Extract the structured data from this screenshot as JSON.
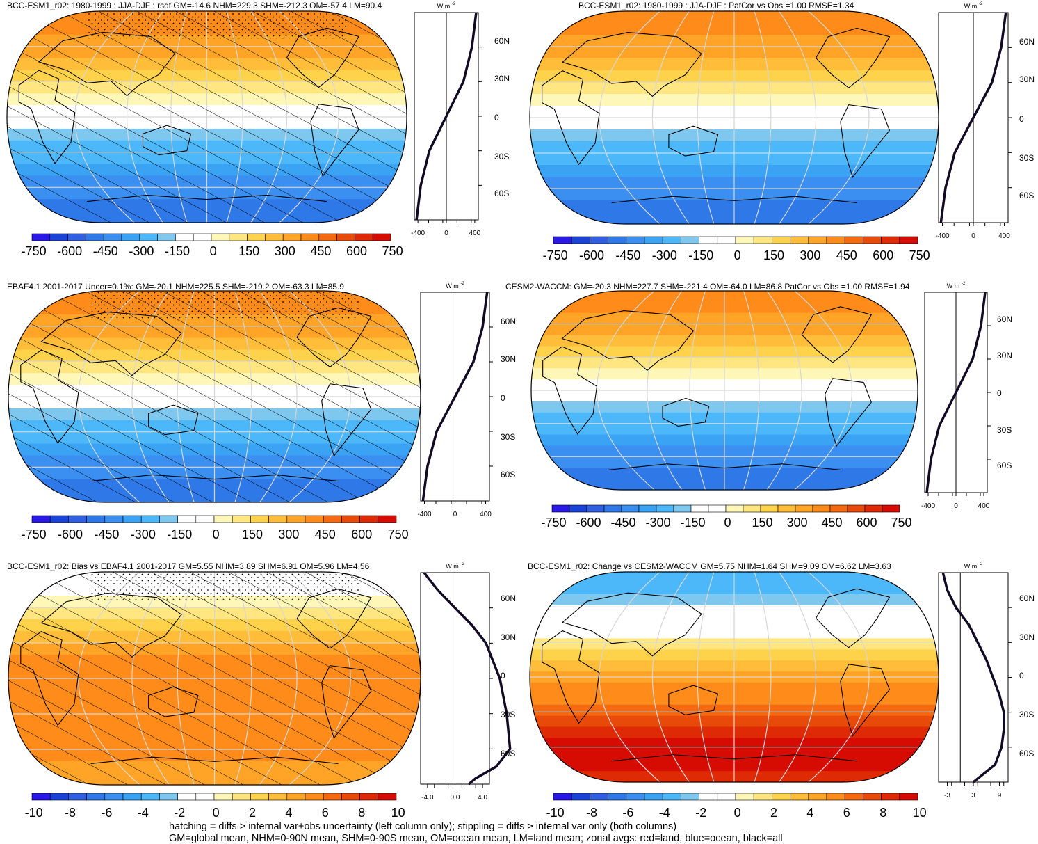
{
  "figure": {
    "footer_lines": [
      "hatching = diffs > internal var+obs uncertainty (left column only); stippling = diffs > internal var only (both columns)",
      "GM=global mean, NHM=0-90N mean, SHM=0-90S mean, OM=ocean mean, LM=land mean; zonal avgs: red=land, blue=ocean, black=all"
    ],
    "units_label": "W m",
    "units_exponent": "-2",
    "palette": [
      "#2a18e6",
      "#1a44d8",
      "#3060e0",
      "#2f78e8",
      "#3a8ff0",
      "#3aa3f4",
      "#4cb8fa",
      "#7ec8f0",
      "#ffffff",
      "#ffffff",
      "#fff7b8",
      "#ffe680",
      "#ffd24c",
      "#ffbd3a",
      "#ffa426",
      "#ff8c1a",
      "#f56a10",
      "#e84a0a",
      "#df2a06",
      "#d60c02"
    ]
  },
  "panels": [
    {
      "id": "top-left",
      "title": "BCC-ESM1_r02: 1980-1999 : JJA-DJF : rsdt GM=-14.6 NHM=229.3 SHM=-212.3 OM=-57.4 LM=90.4",
      "lat_labels": [
        "60N",
        "30N",
        "0",
        "30S",
        "60S"
      ],
      "zonal_xticks": [
        "-400",
        "0",
        "400"
      ],
      "colorbar_labels": [
        "-750",
        "-600",
        "-450",
        "-300",
        "-150",
        "0",
        "150",
        "300",
        "450",
        "600",
        "750"
      ],
      "hatching": true,
      "stippling": true,
      "zonal_mean": {
        "lat": [
          90,
          60,
          30,
          0,
          -30,
          -60,
          -90
        ],
        "value": [
          420,
          360,
          240,
          0,
          -240,
          -360,
          -420
        ],
        "xlim": [
          -450,
          450
        ]
      }
    },
    {
      "id": "top-right",
      "title": "BCC-ESM1_r02: 1980-1999 : JJA-DJF : PatCor vs Obs =1.00 RMSE=1.34",
      "lat_labels": [
        "60N",
        "30N",
        "0",
        "30S",
        "60S"
      ],
      "zonal_xticks": [
        "-400",
        "0",
        "400"
      ],
      "colorbar_labels": [
        "-750",
        "-600",
        "-450",
        "-300",
        "-150",
        "0",
        "150",
        "300",
        "450",
        "600",
        "750"
      ],
      "hatching": false,
      "stippling": false,
      "zonal_mean": {
        "lat": [
          90,
          60,
          30,
          0,
          -30,
          -60,
          -90
        ],
        "value": [
          420,
          360,
          240,
          0,
          -240,
          -360,
          -420
        ],
        "xlim": [
          -450,
          450
        ]
      }
    },
    {
      "id": "middle-left",
      "title": "EBAF4.1 2001-2017 Uncer=0.1%: GM=-20.1 NHM=225.5 SHM=-219.2 OM=-63.3 LM=85.9",
      "lat_labels": [
        "60N",
        "30N",
        "0",
        "30S",
        "60S"
      ],
      "zonal_xticks": [
        "-400",
        "0",
        "400"
      ],
      "colorbar_labels": [
        "-750",
        "-600",
        "-450",
        "-300",
        "-150",
        "0",
        "150",
        "300",
        "450",
        "600",
        "750"
      ],
      "hatching": true,
      "stippling": true,
      "zonal_mean": {
        "lat": [
          90,
          60,
          30,
          0,
          -30,
          -60,
          -90
        ],
        "value": [
          420,
          360,
          240,
          0,
          -240,
          -360,
          -420
        ],
        "xlim": [
          -450,
          450
        ]
      }
    },
    {
      "id": "middle-right",
      "title": "CESM2-WACCM: GM=-20.3 NHM=227.7 SHM=-221.4 OM=-64.0 LM=86.8 PatCor vs Obs =1.00 RMSE=1.94",
      "lat_labels": [
        "60N",
        "30N",
        "0",
        "30S",
        "60S"
      ],
      "zonal_xticks": [
        "-400",
        "0",
        "400"
      ],
      "colorbar_labels": [
        "-750",
        "-600",
        "-450",
        "-300",
        "-150",
        "0",
        "150",
        "300",
        "450",
        "600",
        "750"
      ],
      "hatching": false,
      "stippling": false,
      "zonal_mean": {
        "lat": [
          90,
          60,
          30,
          0,
          -30,
          -60,
          -90
        ],
        "value": [
          420,
          360,
          240,
          0,
          -240,
          -360,
          -420
        ],
        "xlim": [
          -450,
          450
        ]
      }
    },
    {
      "id": "bottom-left",
      "title": "BCC-ESM1_r02: Bias vs EBAF4.1 2001-2017 GM=5.55 NHM=3.89 SHM=6.91 OM=5.96 LM=4.56",
      "lat_labels": [
        "60N",
        "30N",
        "0",
        "30S",
        "60S"
      ],
      "zonal_xticks": [
        "-4.0",
        "0.0",
        "4.0"
      ],
      "colorbar_labels": [
        "-10",
        "-8",
        "-6",
        "-4",
        "-2",
        "0",
        "2",
        "4",
        "6",
        "8",
        "10"
      ],
      "hatching": true,
      "stippling": true,
      "zonal_mean": {
        "lat": [
          90,
          75,
          60,
          45,
          30,
          0,
          -30,
          -60,
          -75,
          -85,
          -90
        ],
        "value": [
          -4.5,
          -2.5,
          0,
          2.5,
          4.5,
          6.5,
          7.5,
          8,
          6,
          3,
          2
        ],
        "xlim": [
          -5,
          5
        ]
      }
    },
    {
      "id": "bottom-right",
      "title": "BCC-ESM1_r02: Change vs CESM2-WACCM GM=5.75 NHM=1.64 SHM=9.09 OM=6.62 LM=3.63",
      "lat_labels": [
        "60N",
        "30N",
        "0",
        "30S",
        "60S"
      ],
      "zonal_xticks": [
        "-3",
        "3",
        "9"
      ],
      "colorbar_labels": [
        "-10",
        "-8",
        "-6",
        "-4",
        "-2",
        "0",
        "2",
        "4",
        "6",
        "8",
        "10"
      ],
      "hatching": false,
      "stippling": false,
      "zonal_mean": {
        "lat": [
          90,
          75,
          60,
          45,
          30,
          15,
          0,
          -15,
          -30,
          -45,
          -60,
          -75,
          -90
        ],
        "value": [
          -4,
          -3,
          -1,
          2,
          4,
          6,
          7.5,
          9,
          10,
          10,
          9.5,
          8,
          3
        ],
        "xlim": [
          -5,
          11
        ]
      }
    }
  ]
}
